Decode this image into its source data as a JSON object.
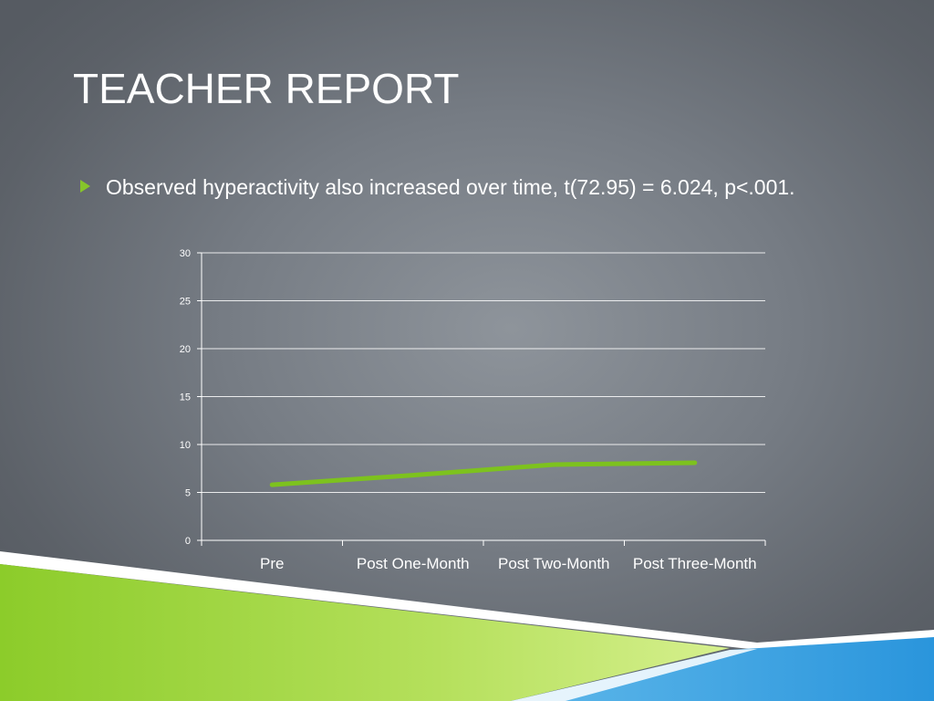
{
  "slide": {
    "title": "TEACHER REPORT",
    "bullet": "Observed hyperactivity also increased over time, t(72.95) = 6.024, p<.001."
  },
  "colors": {
    "accent_green": "#86c52a",
    "accent_blue": "#2d9ee0",
    "line": "#7dc21e"
  },
  "chart_data": {
    "type": "line",
    "title": "",
    "xlabel": "",
    "ylabel": "",
    "categories": [
      "Pre",
      "Post One-Month",
      "Post Two-Month",
      "Post Three-Month"
    ],
    "series": [
      {
        "values": [
          5.8,
          6.8,
          7.9,
          8.1
        ]
      }
    ],
    "ylim": [
      0,
      30
    ],
    "yticks": [
      "0",
      "5",
      "10",
      "15",
      "20",
      "25",
      "30"
    ],
    "grid": true,
    "legend": "none"
  }
}
